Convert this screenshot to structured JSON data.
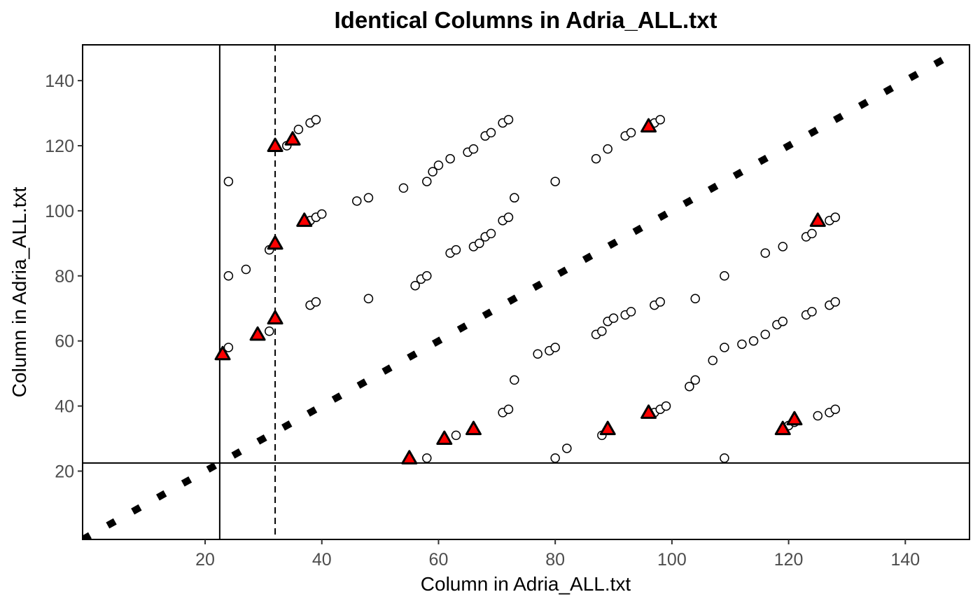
{
  "chart_data": {
    "type": "scatter",
    "title": "Identical Columns in Adria_ALL.txt",
    "xlabel": "Column in Adria_ALL.txt",
    "ylabel": "Column in Adria_ALL.txt",
    "xlim": [
      -1,
      151
    ],
    "ylim": [
      -1,
      151
    ],
    "xticks": [
      20,
      40,
      60,
      80,
      100,
      120,
      140
    ],
    "yticks": [
      20,
      40,
      60,
      80,
      100,
      120,
      140
    ],
    "grid": false,
    "diagonal": {
      "from": [
        -1,
        -1
      ],
      "to": [
        149,
        149
      ],
      "style": "dotted"
    },
    "reference_lines": {
      "vertical_solid": 22.5,
      "vertical_dashed": 32,
      "horizontal_solid": 22.5
    },
    "series": [
      {
        "marker": "circle",
        "color": "#ffffff",
        "points": [
          [
            24,
            109
          ],
          [
            24,
            80
          ],
          [
            27,
            82
          ],
          [
            24,
            58
          ],
          [
            31,
            88
          ],
          [
            31,
            63
          ],
          [
            34,
            120
          ],
          [
            36,
            125
          ],
          [
            38,
            127
          ],
          [
            39,
            128
          ],
          [
            38,
            97
          ],
          [
            39,
            98
          ],
          [
            40,
            99
          ],
          [
            38,
            71
          ],
          [
            39,
            72
          ],
          [
            46,
            103
          ],
          [
            48,
            104
          ],
          [
            48,
            73
          ],
          [
            54,
            107
          ],
          [
            58,
            109
          ],
          [
            59,
            112
          ],
          [
            60,
            114
          ],
          [
            62,
            116
          ],
          [
            65,
            118
          ],
          [
            66,
            119
          ],
          [
            68,
            123
          ],
          [
            69,
            124
          ],
          [
            71,
            127
          ],
          [
            72,
            128
          ],
          [
            56,
            77
          ],
          [
            57,
            79
          ],
          [
            58,
            80
          ],
          [
            58,
            24
          ],
          [
            63,
            31
          ],
          [
            62,
            87
          ],
          [
            63,
            88
          ],
          [
            66,
            89
          ],
          [
            67,
            90
          ],
          [
            68,
            92
          ],
          [
            69,
            93
          ],
          [
            71,
            97
          ],
          [
            72,
            98
          ],
          [
            73,
            104
          ],
          [
            71,
            38
          ],
          [
            72,
            39
          ],
          [
            73,
            48
          ],
          [
            77,
            56
          ],
          [
            79,
            57
          ],
          [
            80,
            58
          ],
          [
            80,
            109
          ],
          [
            80,
            24
          ],
          [
            82,
            27
          ],
          [
            87,
            116
          ],
          [
            89,
            119
          ],
          [
            92,
            123
          ],
          [
            93,
            124
          ],
          [
            97,
            127
          ],
          [
            98,
            128
          ],
          [
            87,
            62
          ],
          [
            88,
            63
          ],
          [
            89,
            66
          ],
          [
            90,
            67
          ],
          [
            92,
            68
          ],
          [
            93,
            69
          ],
          [
            97,
            71
          ],
          [
            98,
            72
          ],
          [
            88,
            31
          ],
          [
            97,
            38
          ],
          [
            98,
            39
          ],
          [
            99,
            40
          ],
          [
            104,
            73
          ],
          [
            103,
            46
          ],
          [
            104,
            48
          ],
          [
            107,
            54
          ],
          [
            109,
            58
          ],
          [
            109,
            80
          ],
          [
            109,
            24
          ],
          [
            112,
            59
          ],
          [
            114,
            60
          ],
          [
            116,
            62
          ],
          [
            118,
            65
          ],
          [
            119,
            66
          ],
          [
            116,
            87
          ],
          [
            119,
            89
          ],
          [
            120,
            34
          ],
          [
            121,
            35
          ],
          [
            123,
            68
          ],
          [
            124,
            69
          ],
          [
            123,
            92
          ],
          [
            124,
            93
          ],
          [
            125,
            37
          ],
          [
            127,
            38
          ],
          [
            128,
            39
          ],
          [
            127,
            71
          ],
          [
            128,
            72
          ],
          [
            127,
            97
          ],
          [
            128,
            98
          ]
        ]
      },
      {
        "marker": "triangle",
        "color": "#ff0000",
        "points": [
          [
            23,
            56
          ],
          [
            29,
            62
          ],
          [
            32,
            67
          ],
          [
            32,
            90
          ],
          [
            37,
            97
          ],
          [
            32,
            120
          ],
          [
            35,
            122
          ],
          [
            55,
            24
          ],
          [
            61,
            30
          ],
          [
            66,
            33
          ],
          [
            89,
            33
          ],
          [
            96,
            38
          ],
          [
            96,
            126
          ],
          [
            119,
            33
          ],
          [
            121,
            36
          ],
          [
            125,
            97
          ]
        ]
      }
    ]
  }
}
